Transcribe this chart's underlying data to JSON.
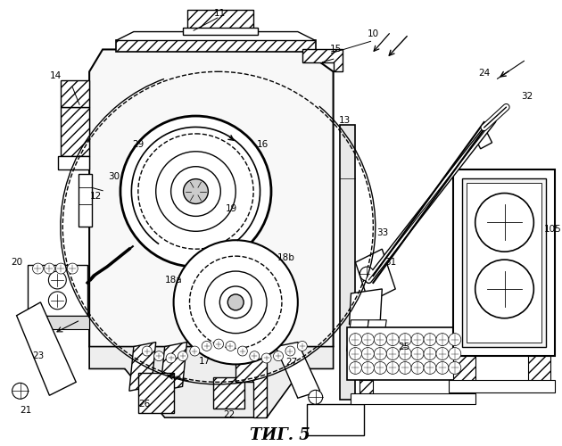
{
  "title": "ΤИГ. 5",
  "title_fontsize": 13,
  "bg_color": "#ffffff",
  "line_color": "#000000",
  "fig_width": 6.3,
  "fig_height": 5.0,
  "dpi": 100
}
